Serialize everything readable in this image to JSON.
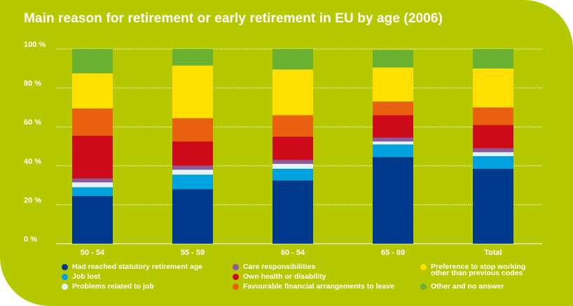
{
  "title": "Main reason for retirement or early retirement in EU by age (2006)",
  "chart_data": {
    "type": "bar",
    "stacked": true,
    "title": "Main reason for retirement or early retirement in EU by age (2006)",
    "categories": [
      "50 - 54",
      "55 - 59",
      "60 - 54",
      "65 - 69",
      "Total"
    ],
    "ylim": [
      0,
      100
    ],
    "y_ticks": [
      "0 %",
      "20 %",
      "40 %",
      "60 %",
      "80 %",
      "100 %"
    ],
    "grid": true,
    "legend_position": "bottom",
    "series": [
      {
        "name": "Had reached statutory retirement age",
        "color": "#003a8c",
        "values": [
          24.5,
          28,
          32.5,
          44.5,
          38.5
        ]
      },
      {
        "name": "Job lost",
        "color": "#00a3e0",
        "values": [
          4.5,
          7.5,
          6,
          6.5,
          6.5
        ]
      },
      {
        "name": "Problems related to job",
        "color": "#e3f2fb",
        "values": [
          2.5,
          2.5,
          2.5,
          1.5,
          2
        ]
      },
      {
        "name": "Care responsibilities",
        "color": "#8a5a9e",
        "values": [
          2,
          2,
          2,
          2,
          2
        ]
      },
      {
        "name": "Own health or disability",
        "color": "#cc0a1a",
        "values": [
          22,
          12.5,
          12,
          11.5,
          12
        ]
      },
      {
        "name": "Favourable financial arrangements to leave",
        "color": "#e96010",
        "values": [
          14,
          12,
          11,
          7,
          9
        ]
      },
      {
        "name": "Preference to stop working\nother than previous codes",
        "color": "#ffe000",
        "values": [
          18,
          27,
          23.5,
          17.5,
          20
        ]
      },
      {
        "name": "Other and no answer",
        "color": "#6cb232",
        "values": [
          12.5,
          8.5,
          10.5,
          9,
          10
        ]
      }
    ]
  }
}
